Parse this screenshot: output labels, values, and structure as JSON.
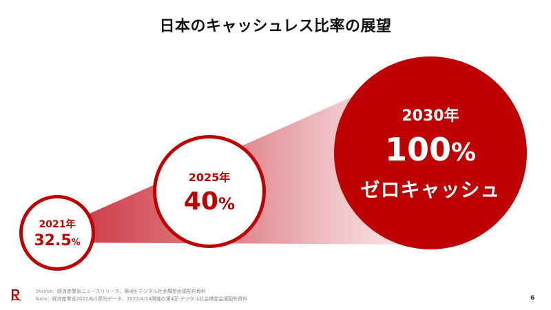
{
  "title": "日本のキャッシュレス比率の展望",
  "milestones": [
    {
      "year": "2021年",
      "value": "32.5",
      "unit": "%"
    },
    {
      "year": "2025年",
      "value": "40",
      "unit": "%"
    },
    {
      "year": "2030年",
      "value": "100",
      "unit": "%",
      "subtitle": "ゼロキャッシュ"
    }
  ],
  "footer": {
    "source": "Source：経済産業省ニュースリリース、第4回 デジタル社会構想会議配布資料",
    "note": "Note：経済産業省2022/6/1発刊データ、2022/4/14開催の第4回 デジタル社会構想会議配布資料"
  },
  "page_number": "6",
  "colors": {
    "accent": "#bf0000",
    "text": "#111111",
    "background": "#ffffff"
  }
}
